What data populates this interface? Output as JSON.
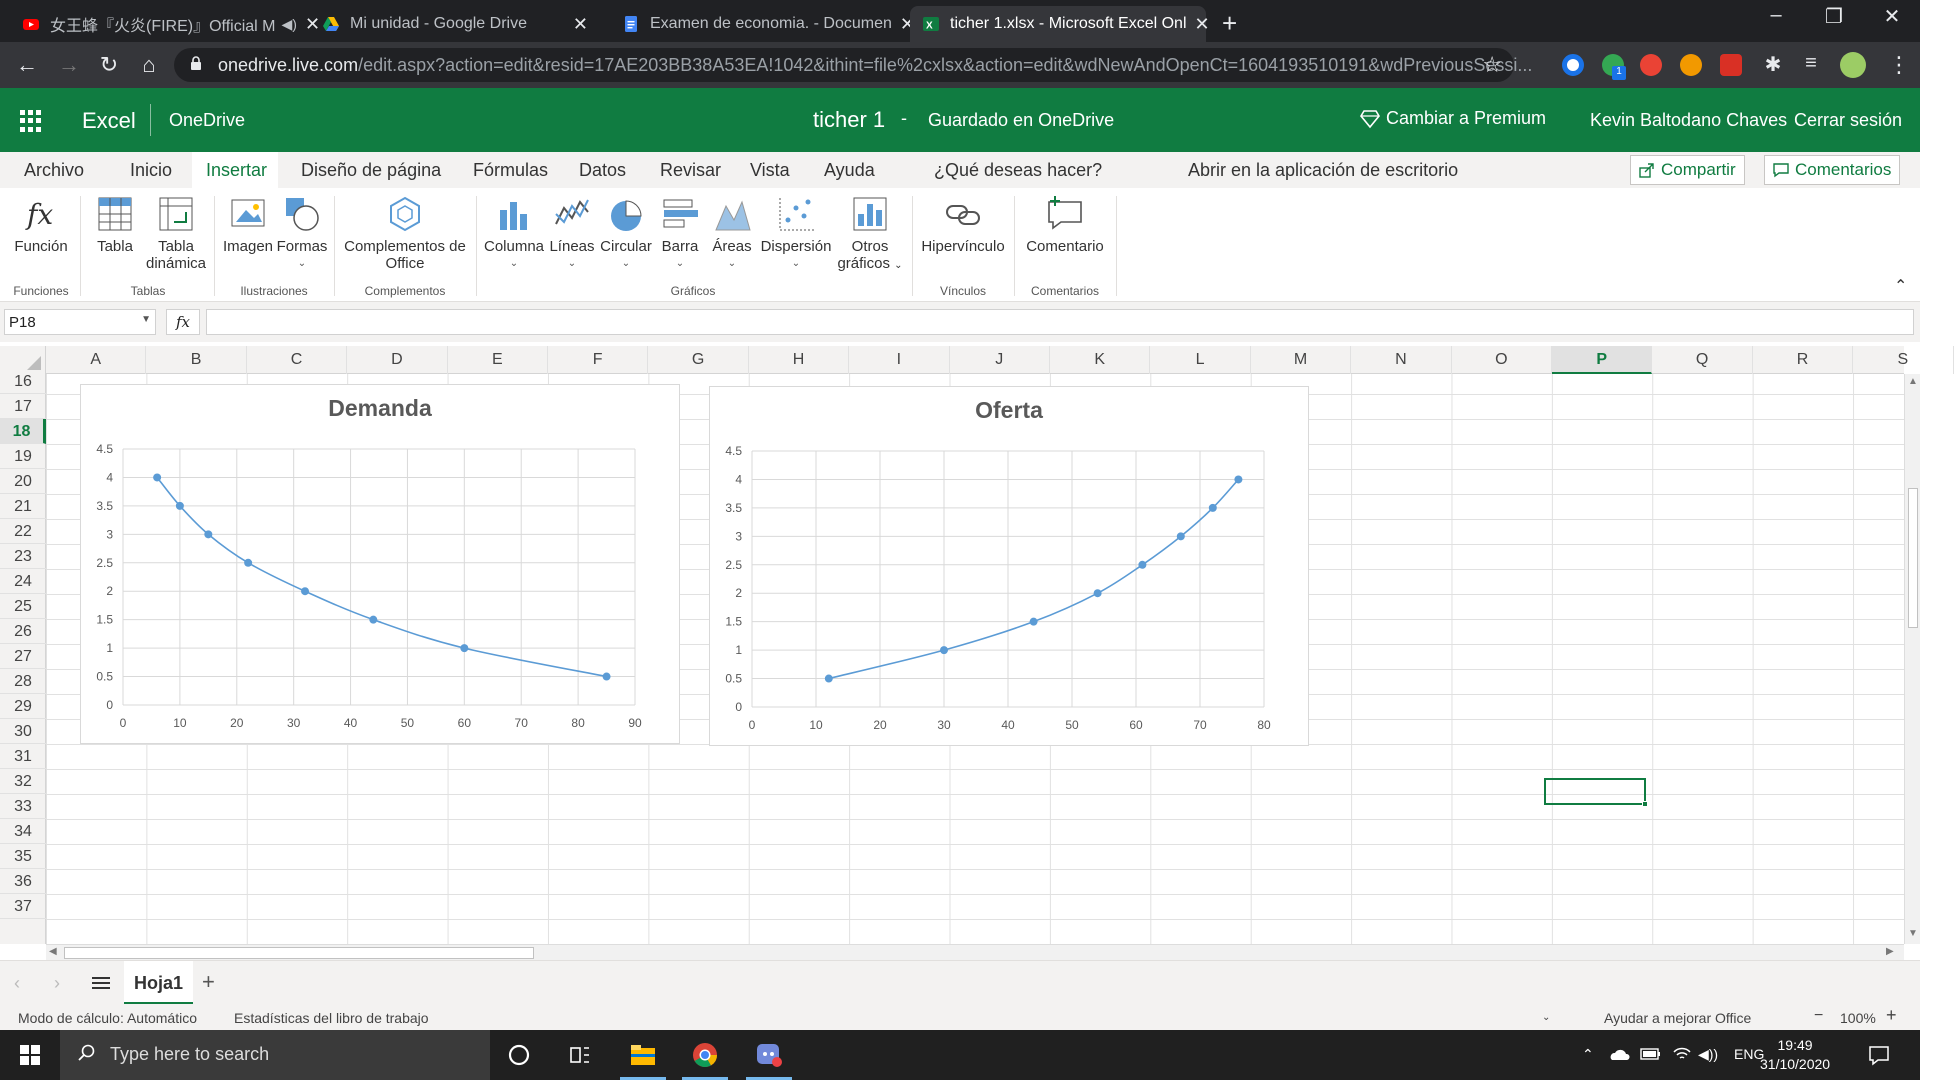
{
  "browser": {
    "tabs": [
      {
        "title": "女王蜂『火炎(FIRE)』Official M",
        "active": false,
        "has_audio": true
      },
      {
        "title": "Mi unidad - Google Drive",
        "active": false
      },
      {
        "title": "Examen de economia. - Documen",
        "active": false
      },
      {
        "title": "ticher 1.xlsx - Microsoft Excel Onl",
        "active": true
      }
    ],
    "url_host": "onedrive.live.com",
    "url_path": "/edit.aspx?action=edit&resid=17AE203BB38A53EA!1042&ithint=file%2cxlsx&action=edit&wdNewAndOpenCt=1604193510191&wdPreviousSessi...",
    "extension_badge": "1"
  },
  "excel_header": {
    "app": "Excel",
    "location": "OneDrive",
    "doc_title": "ticher 1",
    "dash": "-",
    "save_status": "Guardado en OneDrive",
    "premium": "Cambiar a Premium",
    "user": "Kevin Baltodano Chaves",
    "signout": "Cerrar sesión"
  },
  "ribbon_tabs": {
    "archivo": "Archivo",
    "inicio": "Inicio",
    "insertar": "Insertar",
    "diseno": "Diseño de página",
    "formulas": "Fórmulas",
    "datos": "Datos",
    "revisar": "Revisar",
    "vista": "Vista",
    "ayuda": "Ayuda",
    "tell_me": "¿Qué deseas hacer?",
    "open_desktop": "Abrir en la aplicación de escritorio",
    "share": "Compartir",
    "comments": "Comentarios"
  },
  "ribbon": {
    "funcion": "Función",
    "tabla": "Tabla",
    "tabla_dinamica_1": "Tabla",
    "tabla_dinamica_2": "dinámica",
    "imagen": "Imagen",
    "formas": "Formas",
    "complementos_1": "Complementos de",
    "complementos_2": "Office",
    "columna": "Columna",
    "lineas": "Líneas",
    "circular": "Circular",
    "barra": "Barra",
    "areas": "Áreas",
    "dispersion": "Dispersión",
    "otros_1": "Otros",
    "otros_2": "gráficos",
    "hipervinculo": "Hipervínculo",
    "comentario": "Comentario",
    "groups": {
      "funciones": "Funciones",
      "tablas": "Tablas",
      "ilustraciones": "Ilustraciones",
      "complementos": "Complementos",
      "graficos": "Gráficos",
      "vinculos": "Vínculos",
      "comentarios": "Comentarios"
    }
  },
  "formula_bar": {
    "name_box": "P18",
    "fx": "fx",
    "formula": ""
  },
  "grid": {
    "columns": [
      "A",
      "B",
      "C",
      "D",
      "E",
      "F",
      "G",
      "H",
      "I",
      "J",
      "K",
      "L",
      "M",
      "N",
      "O",
      "P",
      "Q",
      "R",
      "S"
    ],
    "rows": [
      "16",
      "17",
      "18",
      "19",
      "20",
      "21",
      "22",
      "23",
      "24",
      "25",
      "26",
      "27",
      "28",
      "29",
      "30",
      "31",
      "32",
      "33",
      "34",
      "35",
      "36",
      "37"
    ],
    "selected_column": "P",
    "selected_row": "18"
  },
  "chart_data": [
    {
      "type": "scatter",
      "title": "Demanda",
      "x": [
        6,
        10,
        15,
        22,
        32,
        44,
        60,
        85
      ],
      "y": [
        4,
        3.5,
        3,
        2.5,
        2,
        1.5,
        1,
        0.5
      ],
      "xlim": [
        0,
        90
      ],
      "ylim": [
        0,
        4.5
      ],
      "xticks": [
        "0",
        "10",
        "20",
        "30",
        "40",
        "50",
        "60",
        "70",
        "80",
        "90"
      ],
      "yticks": [
        "0",
        "0.5",
        "1",
        "1.5",
        "2",
        "2.5",
        "3",
        "3.5",
        "4",
        "4.5"
      ],
      "grid": true,
      "color": "#5b9bd5"
    },
    {
      "type": "scatter",
      "title": "Oferta",
      "x": [
        12,
        30,
        44,
        54,
        61,
        67,
        72,
        76
      ],
      "y": [
        0.5,
        1,
        1.5,
        2,
        2.5,
        3,
        3.5,
        4
      ],
      "xlim": [
        0,
        80
      ],
      "ylim": [
        0,
        4.5
      ],
      "xticks": [
        "0",
        "10",
        "20",
        "30",
        "40",
        "50",
        "60",
        "70",
        "80"
      ],
      "yticks": [
        "0",
        "0.5",
        "1",
        "1.5",
        "2",
        "2.5",
        "3",
        "3.5",
        "4",
        "4.5"
      ],
      "grid": true,
      "color": "#5b9bd5"
    }
  ],
  "sheets": {
    "active": "Hoja1",
    "add": "+"
  },
  "status": {
    "calc_mode": "Modo de cálculo: Automático",
    "stats": "Estadísticas del libro de trabajo",
    "help": "Ayudar a mejorar Office",
    "zoom": "100%",
    "minus": "−",
    "plus": "+"
  },
  "taskbar": {
    "search_placeholder": "Type here to search",
    "lang": "ENG",
    "time": "19:49",
    "date": "31/10/2020"
  },
  "colors": {
    "excel_green": "#107c41",
    "series_blue": "#5b9bd5"
  }
}
